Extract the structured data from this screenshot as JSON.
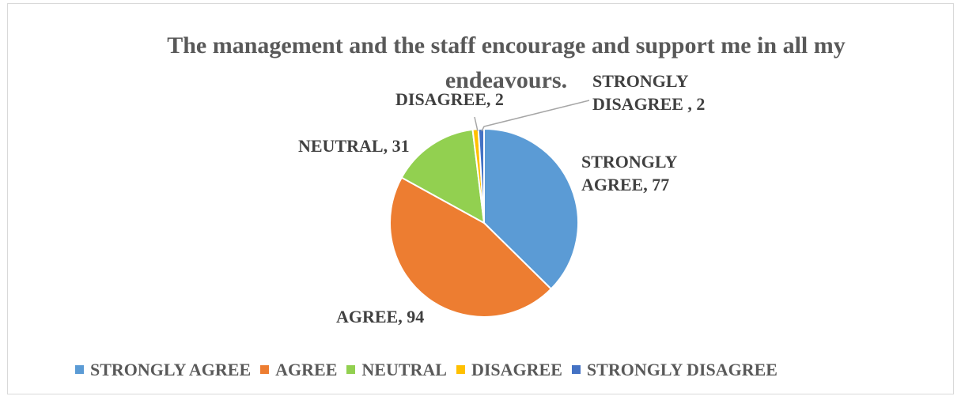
{
  "chart_data": {
    "type": "pie",
    "title": "The management and the staff encourage and support me in all my endeavours.",
    "categories": [
      "STRONGLY AGREE",
      "AGREE",
      "NEUTRAL",
      "DISAGREE",
      "STRONGLY DISAGREE"
    ],
    "values": [
      77,
      94,
      31,
      2,
      2
    ],
    "data_labels": [
      [
        "STRONGLY",
        "AGREE, 77"
      ],
      [
        "AGREE, 94"
      ],
      [
        "NEUTRAL, 31"
      ],
      [
        "DISAGREE, 2"
      ],
      [
        "STRONGLY",
        "DISAGREE , 2"
      ]
    ],
    "colors": [
      "#5b9bd5",
      "#ed7d31",
      "#92d050",
      "#ffc000",
      "#4472c4"
    ],
    "legend_position": "bottom"
  }
}
